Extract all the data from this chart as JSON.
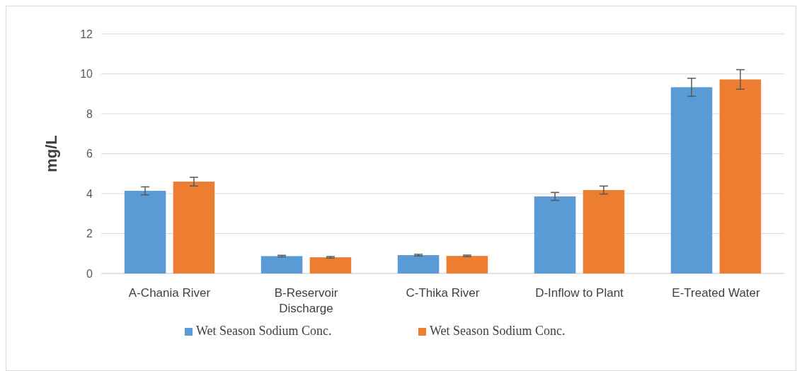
{
  "chart_data": {
    "type": "bar",
    "ylabel": "mg/L",
    "categories": [
      "A-Chania River",
      "B-Reservoir Discharge",
      "C-Thika River",
      "D-Inflow to Plant",
      "E-Treated Water"
    ],
    "series": [
      {
        "name": "Wet Season Sodium Conc.",
        "color": "#5b9bd5",
        "values": [
          4.14,
          0.87,
          0.92,
          3.86,
          9.33
        ],
        "errors": [
          0.2,
          0.04,
          0.04,
          0.2,
          0.45
        ]
      },
      {
        "name": "Wet Season Sodium Conc.",
        "color": "#ed7d31",
        "values": [
          4.6,
          0.81,
          0.88,
          4.18,
          9.72
        ],
        "errors": [
          0.22,
          0.04,
          0.04,
          0.2,
          0.49
        ]
      }
    ],
    "ylim": [
      0,
      12
    ],
    "yticks": [
      0,
      2,
      4,
      6,
      8,
      10,
      12
    ],
    "grid": "y",
    "legend": "bottom"
  }
}
